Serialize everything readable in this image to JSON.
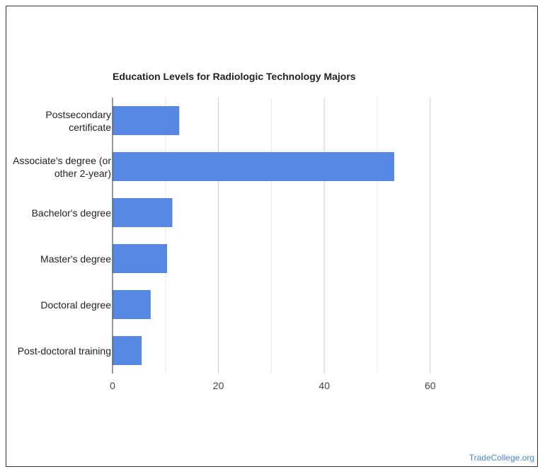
{
  "chart_data": {
    "type": "bar",
    "orientation": "horizontal",
    "title": "Education Levels for Radiologic Technology Majors",
    "categories": [
      "Postsecondary certificate",
      "Associate's degree (or other 2-year)",
      "Bachelor's degree",
      "Master's degree",
      "Doctoral degree",
      "Post-doctoral training"
    ],
    "category_lines": [
      [
        "Postsecondary",
        "certificate"
      ],
      [
        "Associate's degree (or",
        "other 2-year)"
      ],
      [
        "Bachelor's degree"
      ],
      [
        "Master's degree"
      ],
      [
        "Doctoral degree"
      ],
      [
        "Post-doctoral training"
      ]
    ],
    "values": [
      12.6,
      53.2,
      11.3,
      10.3,
      7.2,
      5.5
    ],
    "xlabel": "",
    "ylabel": "",
    "xlim": [
      0,
      80
    ],
    "xticks": [
      0,
      20,
      40,
      60
    ],
    "grid": true,
    "bar_color": "#5687e3"
  },
  "watermark": "TradeCollege.org"
}
